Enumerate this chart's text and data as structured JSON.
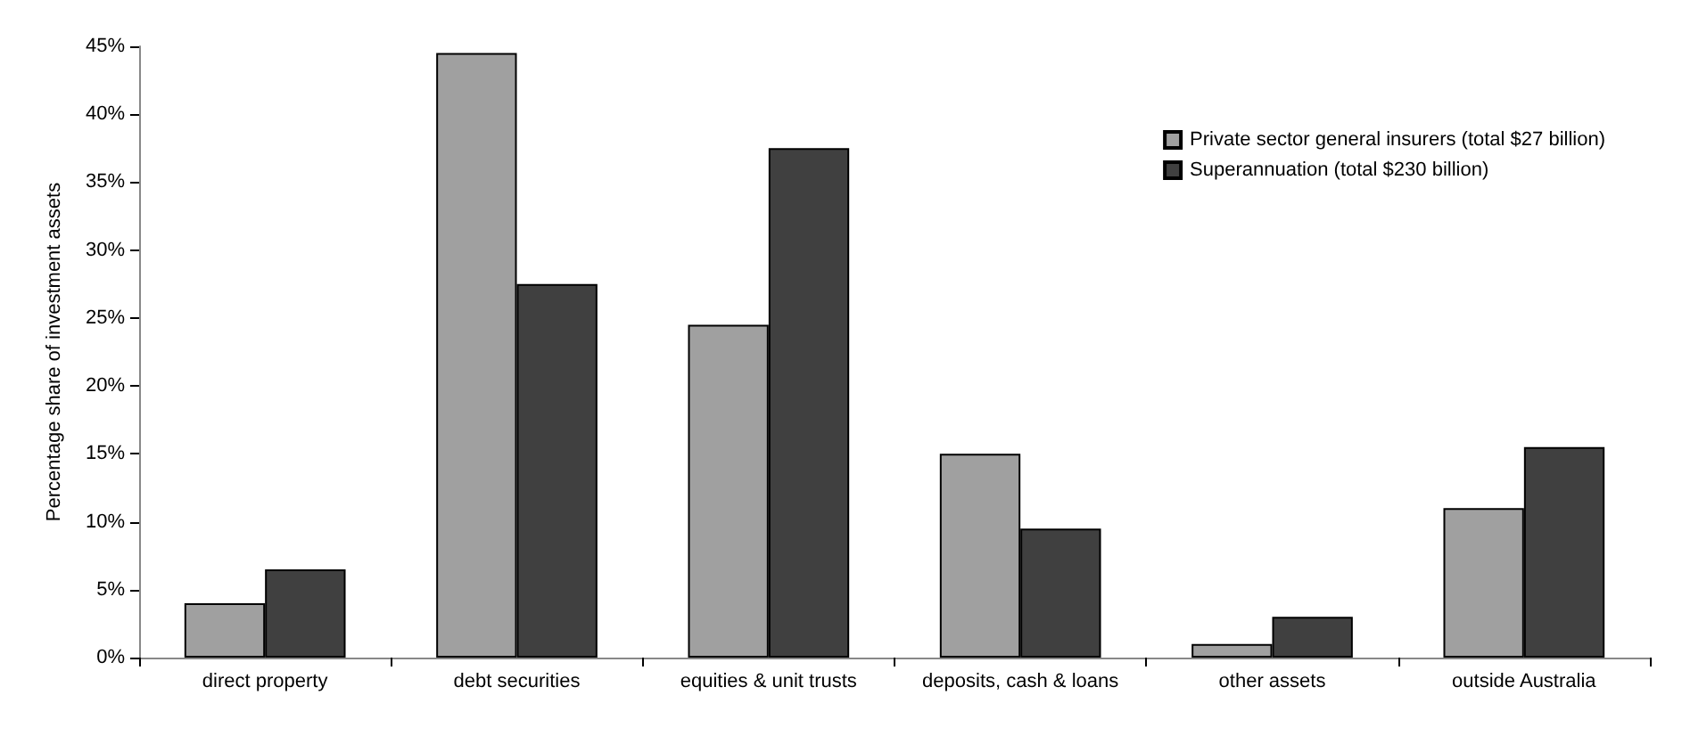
{
  "chart_data": {
    "type": "bar",
    "ylabel": "Percentage share of investment assets",
    "categories": [
      "direct property",
      "debt securities",
      "equities & unit trusts",
      "deposits, cash & loans",
      "other assets",
      "outside Australia"
    ],
    "series": [
      {
        "name": "Private sector general insurers (total $27 billion)",
        "color": "#a0a0a0",
        "values": [
          4,
          44.5,
          24.5,
          15,
          1,
          11
        ]
      },
      {
        "name": "Superannuation (total $230 billion)",
        "color": "#404040",
        "values": [
          6.5,
          27.5,
          37.5,
          9.5,
          3,
          15.5
        ]
      }
    ],
    "ylim": [
      0,
      45
    ],
    "yticks": [
      {
        "value": 0,
        "label": "0%"
      },
      {
        "value": 5,
        "label": "5%"
      },
      {
        "value": 10,
        "label": "10%"
      },
      {
        "value": 15,
        "label": "15%"
      },
      {
        "value": 20,
        "label": "20%"
      },
      {
        "value": 25,
        "label": "25%"
      },
      {
        "value": 30,
        "label": "30%"
      },
      {
        "value": 35,
        "label": "35%"
      },
      {
        "value": 40,
        "label": "40%"
      },
      {
        "value": 45,
        "label": "45%"
      }
    ],
    "grid": false,
    "legend": "top right"
  }
}
